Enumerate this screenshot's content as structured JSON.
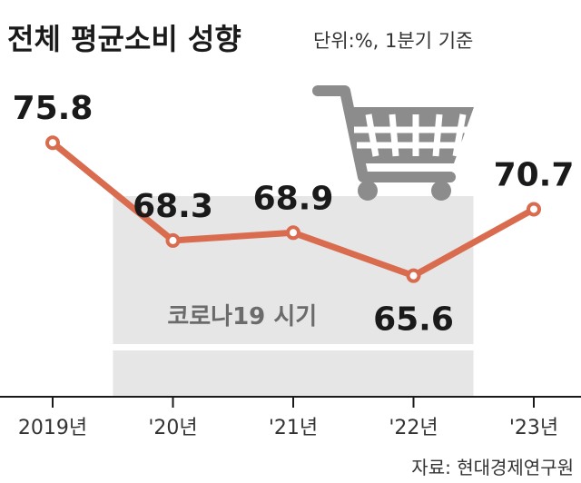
{
  "title": "전체 평균소비 성향",
  "unit_note": "단위:%, 1분기 기준",
  "source": "자료: 현대경제연구원",
  "colors": {
    "line": "#d96b4f",
    "shade": "#e6e6e6",
    "cart": "#8c8c8c"
  },
  "icon": "shopping-cart-icon",
  "chart_data": {
    "type": "line",
    "categories": [
      "2019년",
      "'20년",
      "'21년",
      "'22년",
      "'23년"
    ],
    "values": [
      75.8,
      68.3,
      68.9,
      65.6,
      70.7
    ],
    "value_labels": [
      "75.8",
      "68.3",
      "68.9",
      "65.6",
      "70.7"
    ],
    "ylim": [
      63,
      77
    ],
    "grid": false,
    "shaded_region": {
      "from": "'20년",
      "to": "'22년",
      "label": "코로나19 시기"
    }
  }
}
